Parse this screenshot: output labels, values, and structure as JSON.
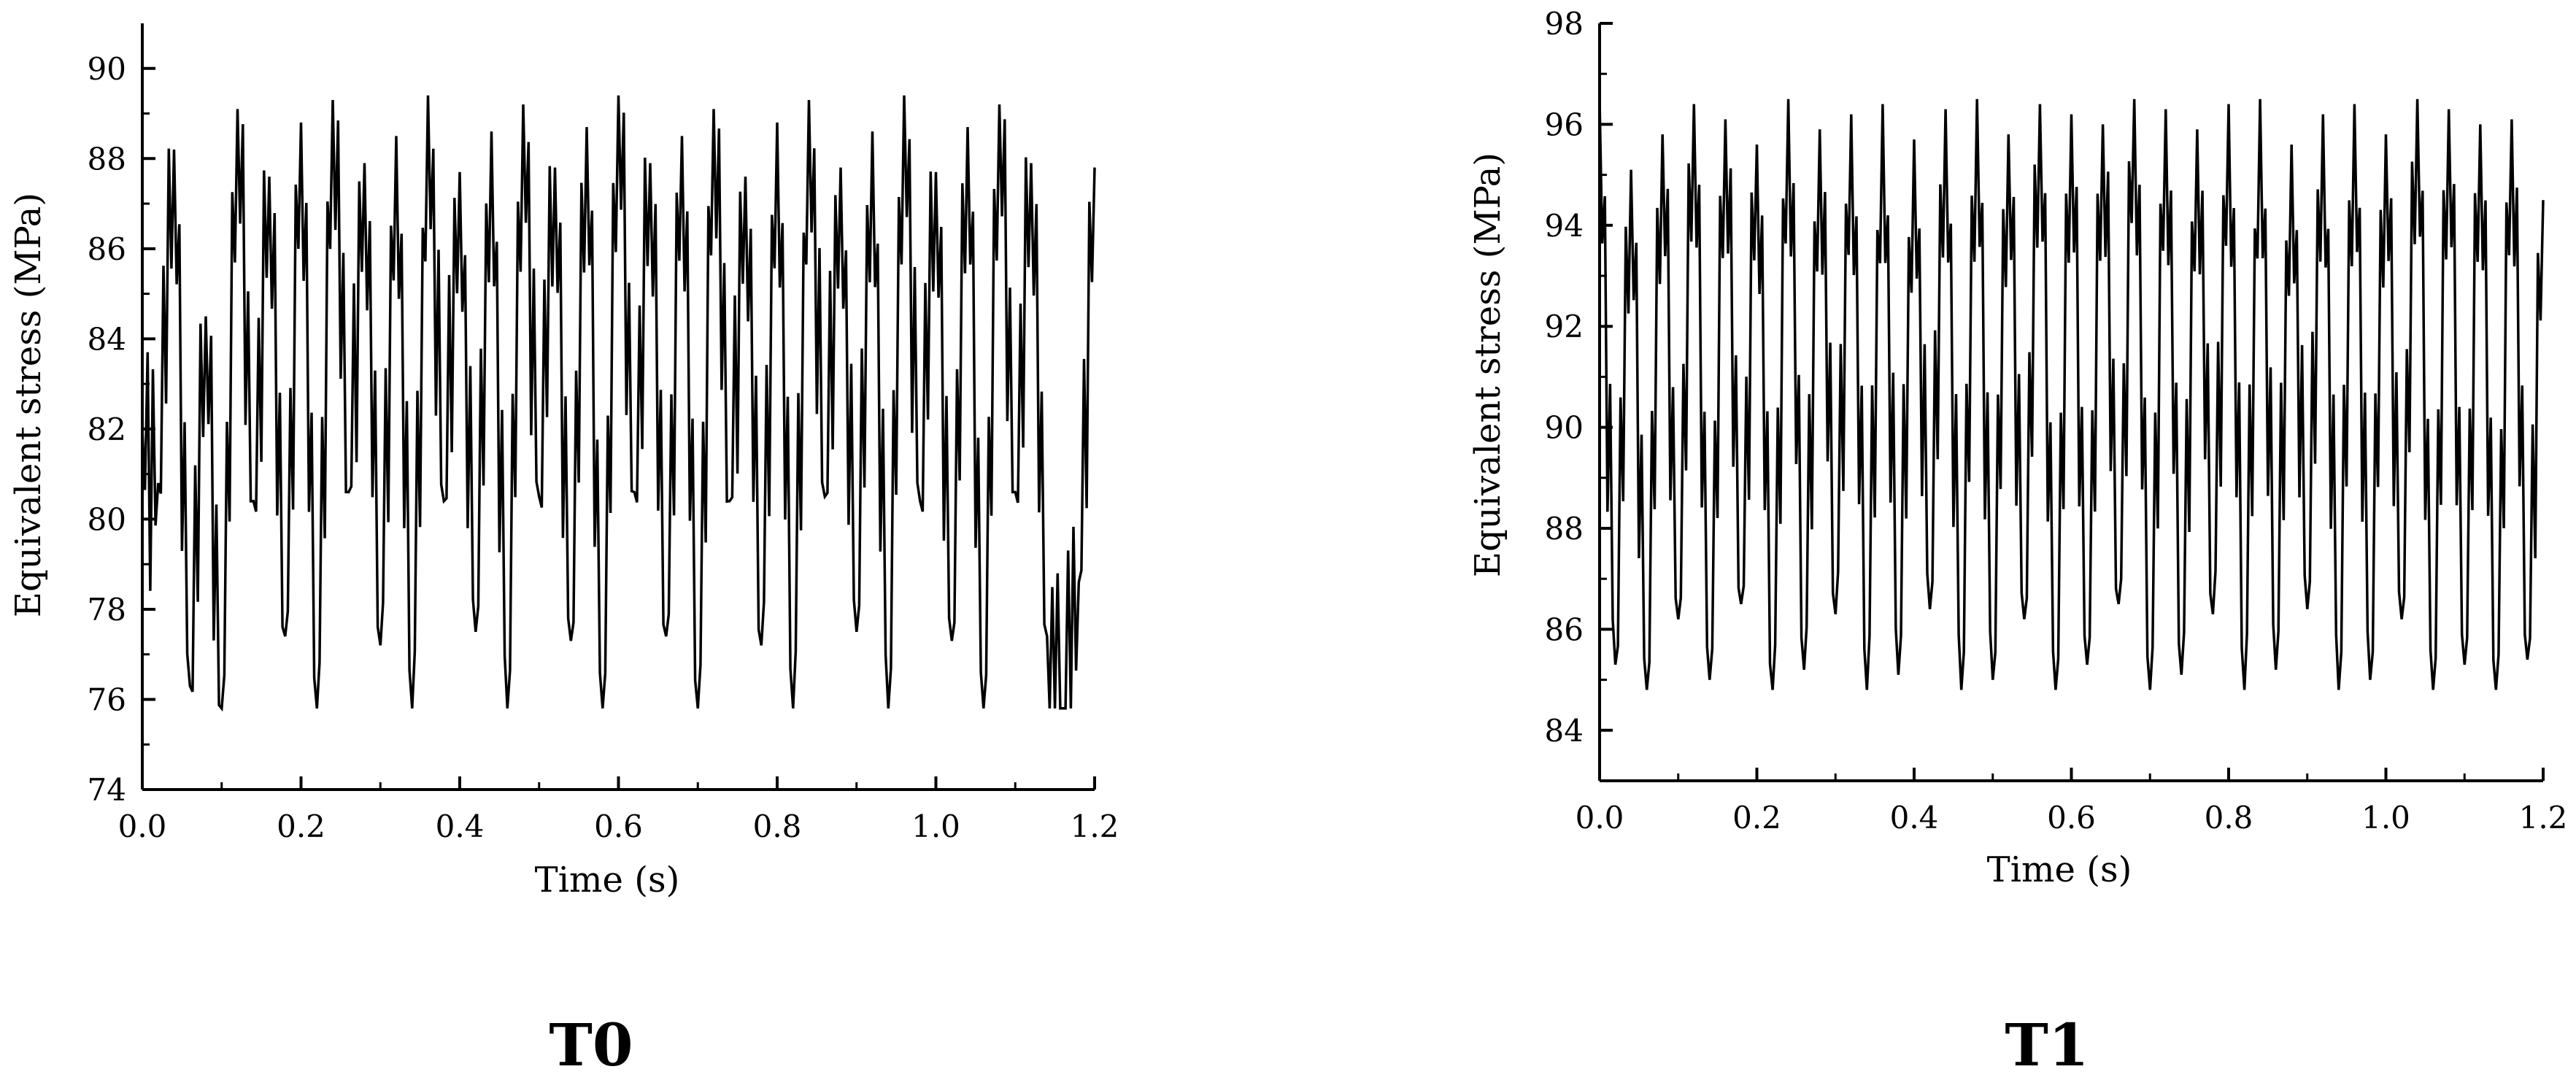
{
  "chart_data": [
    {
      "type": "line",
      "panel_label": "T0",
      "title": "",
      "xlabel": "Time (s)",
      "ylabel": "Equivalent stress (MPa)",
      "xlim": [
        0.0,
        1.2
      ],
      "ylim": [
        74,
        91
      ],
      "xticks": [
        "0.0",
        "0.2",
        "0.4",
        "0.6",
        "0.8",
        "1.0",
        "1.2"
      ],
      "yticks": [
        "74",
        "76",
        "78",
        "80",
        "82",
        "84",
        "86",
        "88",
        "90"
      ],
      "grid": false,
      "legend": "none",
      "signal": {
        "mean": 82.4,
        "min": 75.8,
        "max": 89.4,
        "major_period_s": 0.12,
        "oscillations_per_major_period": 6
      },
      "series": [
        {
          "color": "#000000",
          "x": [
            0.0,
            0.02,
            0.04,
            0.06,
            0.08,
            0.1,
            0.12,
            0.14,
            0.16,
            0.18,
            0.2,
            0.22,
            0.24,
            0.26,
            0.28,
            0.3,
            0.32,
            0.34,
            0.36,
            0.38,
            0.4,
            0.42,
            0.44,
            0.46,
            0.48,
            0.5,
            0.52,
            0.54,
            0.56,
            0.58,
            0.6,
            0.62,
            0.64,
            0.66,
            0.68,
            0.7,
            0.72,
            0.74,
            0.76,
            0.78,
            0.8,
            0.82,
            0.84,
            0.86,
            0.88,
            0.9,
            0.92,
            0.94,
            0.96,
            0.98,
            1.0,
            1.02,
            1.04,
            1.06,
            1.08,
            1.1,
            1.12,
            1.14,
            1.16,
            1.18,
            1.2
          ],
          "y": [
            82.0,
            80.8,
            88.2,
            76.3,
            84.5,
            75.8,
            89.1,
            80.4,
            87.6,
            77.4,
            88.8,
            75.8,
            89.3,
            80.6,
            87.9,
            77.2,
            88.5,
            75.8,
            89.4,
            80.4,
            87.7,
            77.5,
            88.6,
            75.8,
            89.2,
            80.5,
            87.8,
            77.3,
            88.7,
            75.8,
            89.4,
            80.6,
            87.9,
            77.4,
            88.5,
            75.8,
            89.1,
            80.4,
            87.6,
            77.2,
            88.8,
            75.8,
            89.3,
            80.5,
            87.8,
            77.5,
            88.6,
            75.8,
            89.4,
            80.4,
            87.7,
            77.3,
            88.7,
            75.8,
            89.2,
            80.6,
            87.9,
            77.4,
            75.8,
            78.6,
            87.8
          ]
        }
      ]
    },
    {
      "type": "line",
      "panel_label": "T1",
      "title": "",
      "xlabel": "Time (s)",
      "ylabel": "Equivalent stress (MPa)",
      "xlim": [
        0.0,
        1.2
      ],
      "ylim": [
        83,
        98
      ],
      "xticks": [
        "0.0",
        "0.2",
        "0.4",
        "0.6",
        "0.8",
        "1.0",
        "1.2"
      ],
      "yticks": [
        "84",
        "86",
        "88",
        "90",
        "92",
        "94",
        "96",
        "98"
      ],
      "grid": false,
      "legend": "none",
      "signal": {
        "mean": 90.5,
        "min": 84.8,
        "max": 96.5,
        "major_period_s": 0.12,
        "oscillations_per_major_period": 6
      },
      "series": [
        {
          "color": "#000000",
          "x": [
            0.0,
            0.02,
            0.04,
            0.06,
            0.08,
            0.1,
            0.12,
            0.14,
            0.16,
            0.18,
            0.2,
            0.22,
            0.24,
            0.26,
            0.28,
            0.3,
            0.32,
            0.34,
            0.36,
            0.38,
            0.4,
            0.42,
            0.44,
            0.46,
            0.48,
            0.5,
            0.52,
            0.54,
            0.56,
            0.58,
            0.6,
            0.62,
            0.64,
            0.66,
            0.68,
            0.7,
            0.72,
            0.74,
            0.76,
            0.78,
            0.8,
            0.82,
            0.84,
            0.86,
            0.88,
            0.9,
            0.92,
            0.94,
            0.96,
            0.98,
            1.0,
            1.02,
            1.04,
            1.06,
            1.08,
            1.1,
            1.12,
            1.14,
            1.16,
            1.18,
            1.2
          ],
          "y": [
            96.5,
            85.3,
            95.1,
            84.8,
            95.8,
            86.2,
            96.4,
            85.0,
            96.1,
            86.5,
            95.6,
            84.8,
            96.5,
            85.2,
            95.9,
            86.3,
            96.2,
            84.8,
            96.4,
            85.1,
            95.7,
            86.4,
            96.3,
            84.8,
            96.5,
            85.0,
            95.8,
            86.2,
            96.4,
            84.8,
            96.2,
            85.3,
            96.0,
            86.5,
            96.5,
            84.8,
            96.3,
            85.1,
            95.9,
            86.3,
            96.4,
            84.8,
            96.5,
            85.2,
            95.6,
            86.4,
            96.2,
            84.8,
            96.4,
            85.0,
            95.8,
            86.2,
            96.5,
            84.8,
            96.3,
            85.3,
            96.0,
            84.8,
            96.1,
            85.4,
            94.5
          ]
        }
      ]
    }
  ]
}
